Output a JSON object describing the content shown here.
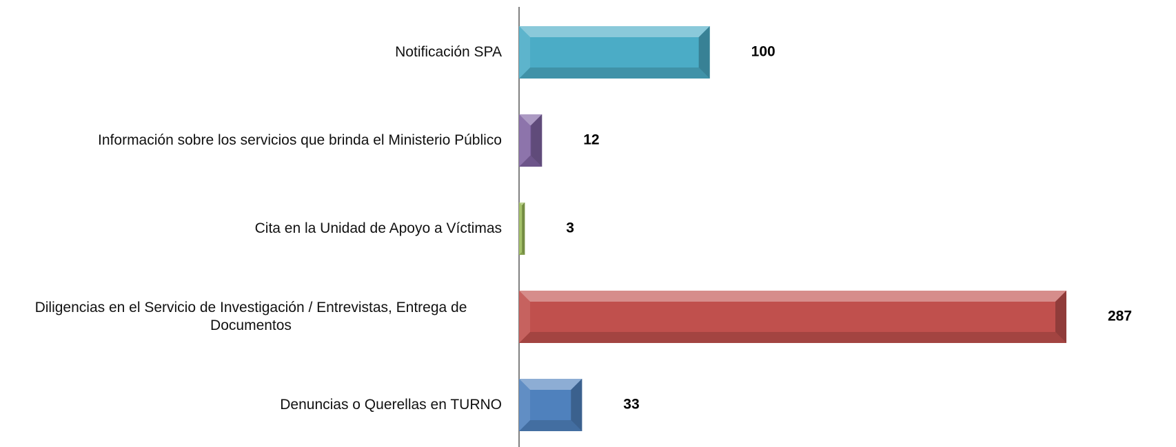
{
  "chart_data": {
    "type": "bar",
    "orientation": "horizontal",
    "categories": [
      "Notificación SPA",
      "Información sobre los servicios que brinda el Ministerio Público",
      "Cita en la Unidad de Apoyo a Víctimas",
      "Diligencias en el Servicio de Investigación / Entrevistas, Entrega de Documentos",
      "Denuncias o Querellas en TURNO"
    ],
    "values": [
      100,
      12,
      3,
      287,
      33
    ],
    "colors": [
      "#4bacc6",
      "#8064a2",
      "#9bbb59",
      "#c0504d",
      "#4f81bd"
    ]
  }
}
